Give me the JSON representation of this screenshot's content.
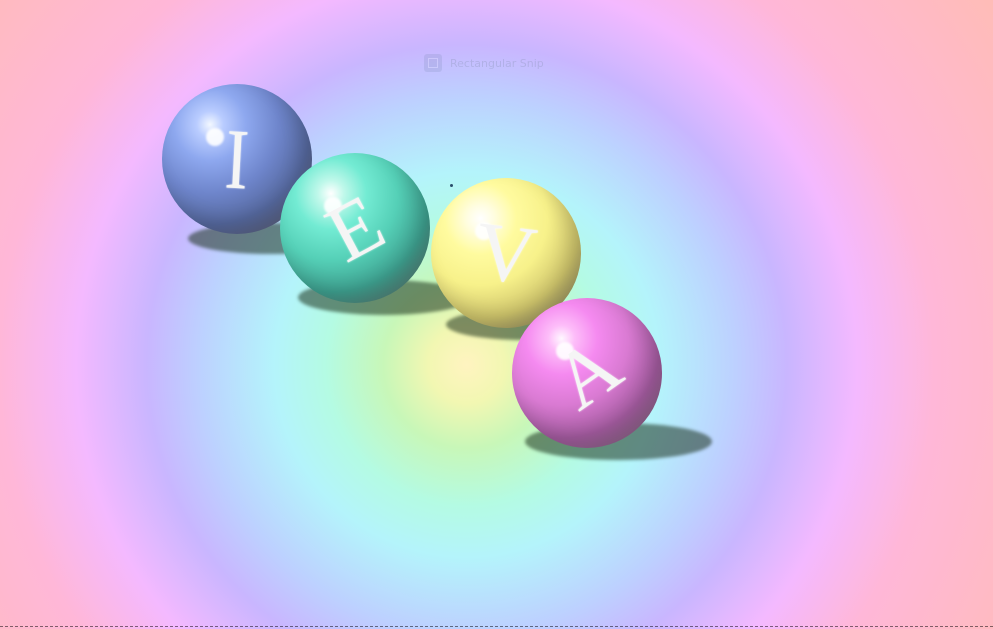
{
  "overlay": {
    "label": "Rectangular Snip",
    "icon": "rectangular-snip-icon"
  },
  "balls": [
    {
      "letter": "I",
      "color": "#7f98e0"
    },
    {
      "letter": "E",
      "color": "#65ddc6"
    },
    {
      "letter": "V",
      "color": "#f7f18f"
    },
    {
      "letter": "A",
      "color": "#ee83e5"
    }
  ],
  "colors": {
    "background_center": "#fff4c0",
    "background_ring_green": "#c8f7b8",
    "background_ring_cyan": "#b4f4fb",
    "background_ring_blue": "#bdd0ff",
    "background_ring_pink": "#ffb7d8"
  }
}
